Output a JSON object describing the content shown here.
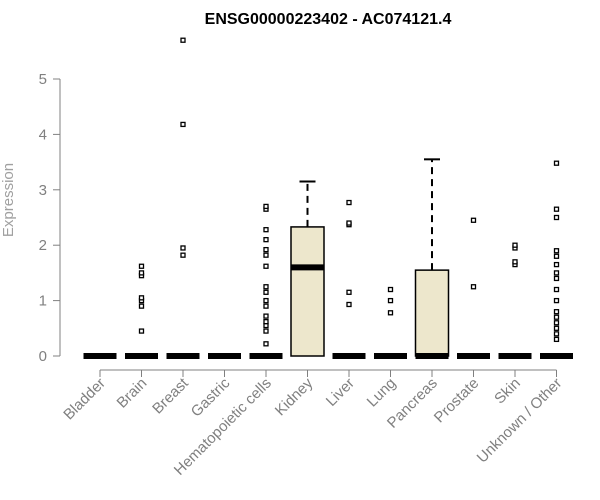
{
  "chart_data": {
    "type": "box",
    "title": "ENSG00000223402 - AC074121.4",
    "xlabel": "",
    "ylabel": "Expression",
    "ylim": [
      0,
      5.8
    ],
    "yticks": [
      0,
      1,
      2,
      3,
      4,
      5
    ],
    "box_color": "#ede7cc",
    "axis_color": "#808080",
    "categories": [
      "Bladder",
      "Brain",
      "Breast",
      "Gastric",
      "Hematopoietic cells",
      "Kidney",
      "Liver",
      "Lung",
      "Pancreas",
      "Prostate",
      "Skin",
      "Unknown / Other"
    ],
    "boxes": [
      {
        "q1": 0,
        "median": 0,
        "q3": 0,
        "whisker_low": 0,
        "whisker_high": 0,
        "outliers": []
      },
      {
        "q1": 0,
        "median": 0,
        "q3": 0,
        "whisker_low": 0,
        "whisker_high": 0,
        "outliers": [
          0.45,
          0.9,
          1.0,
          1.05,
          1.45,
          1.5,
          1.62
        ]
      },
      {
        "q1": 0,
        "median": 0,
        "q3": 0,
        "whisker_low": 0,
        "whisker_high": 0,
        "outliers": [
          1.82,
          1.95,
          4.18,
          5.7
        ]
      },
      {
        "q1": 0,
        "median": 0,
        "q3": 0,
        "whisker_low": 0,
        "whisker_high": 0,
        "outliers": []
      },
      {
        "q1": 0,
        "median": 0,
        "q3": 0,
        "whisker_low": 0,
        "whisker_high": 0,
        "outliers": [
          0.22,
          0.45,
          0.55,
          0.62,
          0.72,
          0.9,
          1.0,
          1.15,
          1.25,
          1.62,
          1.82,
          1.92,
          2.1,
          2.28,
          2.65,
          2.7
        ]
      },
      {
        "q1": 0,
        "median": 1.6,
        "q3": 2.33,
        "whisker_low": 0,
        "whisker_high": 3.15,
        "outliers": []
      },
      {
        "q1": 0,
        "median": 0,
        "q3": 0,
        "whisker_low": 0,
        "whisker_high": 0,
        "outliers": [
          0.93,
          1.15,
          2.37,
          2.4,
          2.77
        ]
      },
      {
        "q1": 0,
        "median": 0,
        "q3": 0,
        "whisker_low": 0,
        "whisker_high": 0,
        "outliers": [
          0.78,
          1.0,
          1.2
        ]
      },
      {
        "q1": 0,
        "median": 0,
        "q3": 1.55,
        "whisker_low": 0,
        "whisker_high": 3.55,
        "outliers": []
      },
      {
        "q1": 0,
        "median": 0,
        "q3": 0,
        "whisker_low": 0,
        "whisker_high": 0,
        "outliers": [
          1.25,
          2.45
        ]
      },
      {
        "q1": 0,
        "median": 0,
        "q3": 0,
        "whisker_low": 0,
        "whisker_high": 0,
        "outliers": [
          1.65,
          1.7,
          1.95,
          2.0
        ]
      },
      {
        "q1": 0,
        "median": 0,
        "q3": 0,
        "whisker_low": 0,
        "whisker_high": 0,
        "outliers": [
          0.3,
          0.4,
          0.5,
          0.6,
          0.7,
          0.8,
          1.0,
          1.2,
          1.4,
          1.5,
          1.65,
          1.8,
          1.9,
          2.5,
          2.65,
          3.48
        ]
      }
    ]
  }
}
